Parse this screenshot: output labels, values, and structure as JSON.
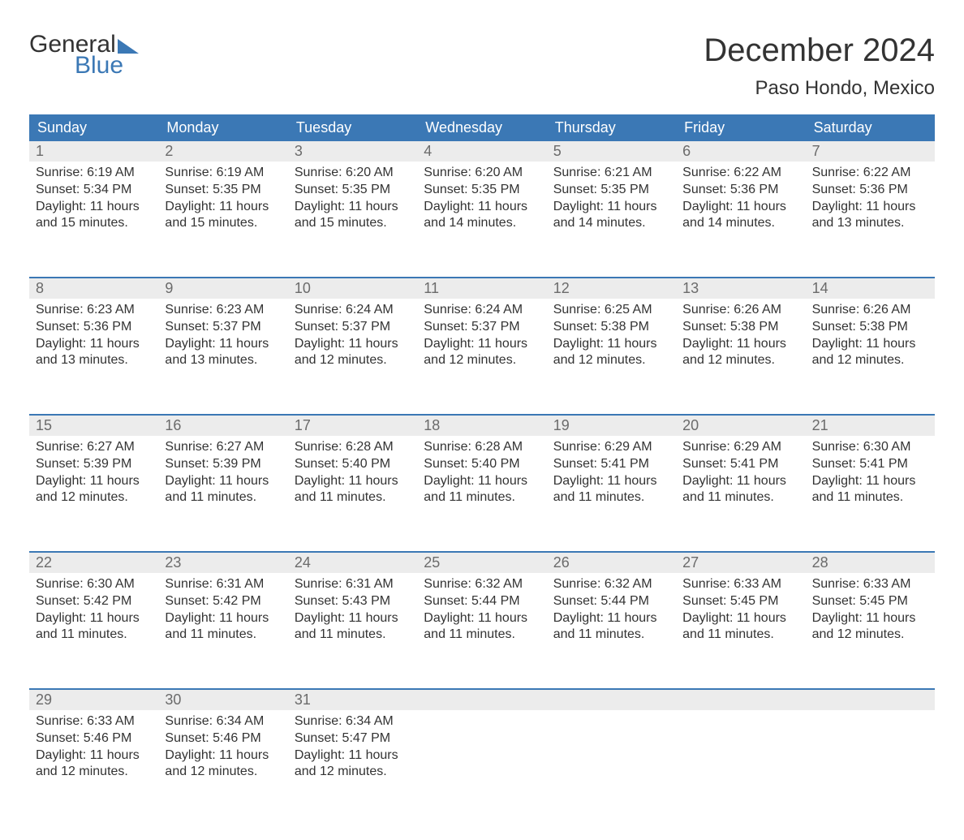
{
  "logo": {
    "line1": "General",
    "line2": "Blue"
  },
  "title": "December 2024",
  "location": "Paso Hondo, Mexico",
  "colors": {
    "header_bg": "#3b78b5",
    "header_text": "#ffffff",
    "daynum_bg": "#ececec",
    "daynum_text": "#6b6b6b",
    "body_text": "#333333",
    "week_border": "#3b78b5",
    "page_bg": "#ffffff",
    "logo_blue": "#3b78b5"
  },
  "typography": {
    "title_fontsize": 40,
    "location_fontsize": 24,
    "dayname_fontsize": 18,
    "daynum_fontsize": 18,
    "cell_fontsize": 16,
    "logo_fontsize": 30
  },
  "day_names": [
    "Sunday",
    "Monday",
    "Tuesday",
    "Wednesday",
    "Thursday",
    "Friday",
    "Saturday"
  ],
  "weeks": [
    [
      {
        "n": "1",
        "sunrise": "6:19 AM",
        "sunset": "5:34 PM",
        "dl_h": "11",
        "dl_m": "15"
      },
      {
        "n": "2",
        "sunrise": "6:19 AM",
        "sunset": "5:35 PM",
        "dl_h": "11",
        "dl_m": "15"
      },
      {
        "n": "3",
        "sunrise": "6:20 AM",
        "sunset": "5:35 PM",
        "dl_h": "11",
        "dl_m": "15"
      },
      {
        "n": "4",
        "sunrise": "6:20 AM",
        "sunset": "5:35 PM",
        "dl_h": "11",
        "dl_m": "14"
      },
      {
        "n": "5",
        "sunrise": "6:21 AM",
        "sunset": "5:35 PM",
        "dl_h": "11",
        "dl_m": "14"
      },
      {
        "n": "6",
        "sunrise": "6:22 AM",
        "sunset": "5:36 PM",
        "dl_h": "11",
        "dl_m": "14"
      },
      {
        "n": "7",
        "sunrise": "6:22 AM",
        "sunset": "5:36 PM",
        "dl_h": "11",
        "dl_m": "13"
      }
    ],
    [
      {
        "n": "8",
        "sunrise": "6:23 AM",
        "sunset": "5:36 PM",
        "dl_h": "11",
        "dl_m": "13"
      },
      {
        "n": "9",
        "sunrise": "6:23 AM",
        "sunset": "5:37 PM",
        "dl_h": "11",
        "dl_m": "13"
      },
      {
        "n": "10",
        "sunrise": "6:24 AM",
        "sunset": "5:37 PM",
        "dl_h": "11",
        "dl_m": "12"
      },
      {
        "n": "11",
        "sunrise": "6:24 AM",
        "sunset": "5:37 PM",
        "dl_h": "11",
        "dl_m": "12"
      },
      {
        "n": "12",
        "sunrise": "6:25 AM",
        "sunset": "5:38 PM",
        "dl_h": "11",
        "dl_m": "12"
      },
      {
        "n": "13",
        "sunrise": "6:26 AM",
        "sunset": "5:38 PM",
        "dl_h": "11",
        "dl_m": "12"
      },
      {
        "n": "14",
        "sunrise": "6:26 AM",
        "sunset": "5:38 PM",
        "dl_h": "11",
        "dl_m": "12"
      }
    ],
    [
      {
        "n": "15",
        "sunrise": "6:27 AM",
        "sunset": "5:39 PM",
        "dl_h": "11",
        "dl_m": "12"
      },
      {
        "n": "16",
        "sunrise": "6:27 AM",
        "sunset": "5:39 PM",
        "dl_h": "11",
        "dl_m": "11"
      },
      {
        "n": "17",
        "sunrise": "6:28 AM",
        "sunset": "5:40 PM",
        "dl_h": "11",
        "dl_m": "11"
      },
      {
        "n": "18",
        "sunrise": "6:28 AM",
        "sunset": "5:40 PM",
        "dl_h": "11",
        "dl_m": "11"
      },
      {
        "n": "19",
        "sunrise": "6:29 AM",
        "sunset": "5:41 PM",
        "dl_h": "11",
        "dl_m": "11"
      },
      {
        "n": "20",
        "sunrise": "6:29 AM",
        "sunset": "5:41 PM",
        "dl_h": "11",
        "dl_m": "11"
      },
      {
        "n": "21",
        "sunrise": "6:30 AM",
        "sunset": "5:41 PM",
        "dl_h": "11",
        "dl_m": "11"
      }
    ],
    [
      {
        "n": "22",
        "sunrise": "6:30 AM",
        "sunset": "5:42 PM",
        "dl_h": "11",
        "dl_m": "11"
      },
      {
        "n": "23",
        "sunrise": "6:31 AM",
        "sunset": "5:42 PM",
        "dl_h": "11",
        "dl_m": "11"
      },
      {
        "n": "24",
        "sunrise": "6:31 AM",
        "sunset": "5:43 PM",
        "dl_h": "11",
        "dl_m": "11"
      },
      {
        "n": "25",
        "sunrise": "6:32 AM",
        "sunset": "5:44 PM",
        "dl_h": "11",
        "dl_m": "11"
      },
      {
        "n": "26",
        "sunrise": "6:32 AM",
        "sunset": "5:44 PM",
        "dl_h": "11",
        "dl_m": "11"
      },
      {
        "n": "27",
        "sunrise": "6:33 AM",
        "sunset": "5:45 PM",
        "dl_h": "11",
        "dl_m": "11"
      },
      {
        "n": "28",
        "sunrise": "6:33 AM",
        "sunset": "5:45 PM",
        "dl_h": "11",
        "dl_m": "12"
      }
    ],
    [
      {
        "n": "29",
        "sunrise": "6:33 AM",
        "sunset": "5:46 PM",
        "dl_h": "11",
        "dl_m": "12"
      },
      {
        "n": "30",
        "sunrise": "6:34 AM",
        "sunset": "5:46 PM",
        "dl_h": "11",
        "dl_m": "12"
      },
      {
        "n": "31",
        "sunrise": "6:34 AM",
        "sunset": "5:47 PM",
        "dl_h": "11",
        "dl_m": "12"
      },
      null,
      null,
      null,
      null
    ]
  ],
  "labels": {
    "sunrise_prefix": "Sunrise: ",
    "sunset_prefix": "Sunset: ",
    "daylight_prefix": "Daylight: ",
    "hours_word": " hours",
    "and_word": "and ",
    "minutes_word": " minutes."
  }
}
